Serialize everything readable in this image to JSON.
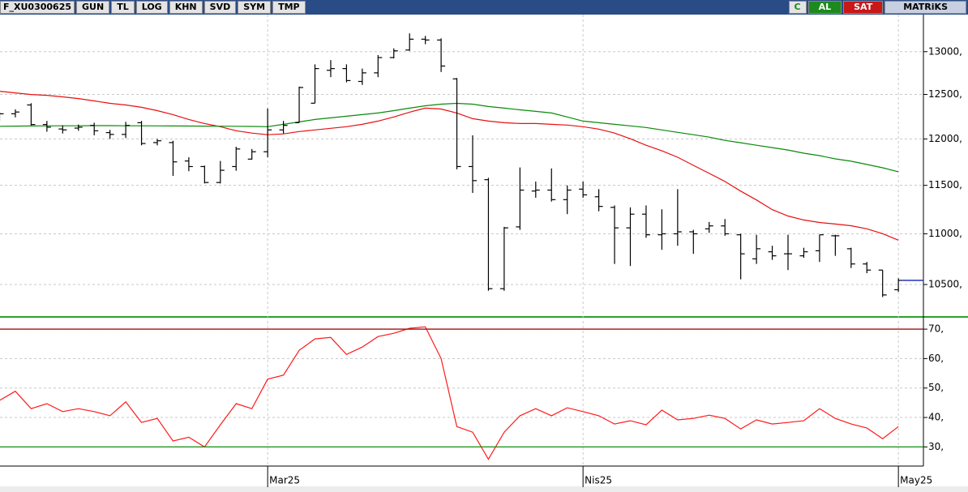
{
  "toolbar": {
    "symbol": "F_XU0300625",
    "buttons": [
      "GUN",
      "TL",
      "LOG",
      "KHN",
      "SVD",
      "SYM",
      "TMP"
    ],
    "right": [
      "C",
      "AL",
      "SAT",
      "MATRiKS"
    ]
  },
  "chart_data": [
    {
      "type": "ohlc",
      "color": "#000000",
      "log": true,
      "grid": true,
      "ylim": [
        10200,
        13450
      ],
      "yticks": [
        {
          "value": 10500,
          "label": "10500,"
        },
        {
          "value": 11000,
          "label": "11000,"
        },
        {
          "value": 11500,
          "label": "11500,"
        },
        {
          "value": 12000,
          "label": "12000,"
        },
        {
          "value": 12500,
          "label": "12500,"
        },
        {
          "value": 13000,
          "label": "13000,"
        }
      ],
      "open": [
        12250,
        12280,
        12380,
        12160,
        12110,
        12120,
        12150,
        12070,
        12050,
        12180,
        11960,
        11960,
        11760,
        11700,
        11530,
        11700,
        11780,
        11860,
        12100,
        12180,
        12400,
        12780,
        12800,
        12650,
        12750,
        12930,
        13020,
        13150,
        13140,
        12680,
        11700,
        11560,
        10460,
        11070,
        11440,
        11450,
        11350,
        11460,
        11380,
        11270,
        11060,
        11200,
        10990,
        11000,
        11020,
        11050,
        11080,
        10990,
        10750,
        10820,
        10800,
        10780,
        10830,
        10980,
        10850,
        10700,
        10640,
        10450
      ],
      "high": [
        12300,
        12330,
        12400,
        12200,
        12150,
        12160,
        12180,
        12100,
        12190,
        12200,
        12000,
        11980,
        11800,
        11710,
        11760,
        11915,
        11890,
        12340,
        12200,
        12590,
        12850,
        12900,
        12850,
        12800,
        12960,
        13040,
        13220,
        13190,
        13160,
        12690,
        12040,
        11580,
        11070,
        11690,
        11540,
        11680,
        11500,
        11540,
        11460,
        11290,
        11270,
        11290,
        11250,
        11460,
        11040,
        11120,
        11150,
        11000,
        10990,
        10880,
        10990,
        10860,
        10990,
        10990,
        10860,
        10720,
        10640,
        10560
      ],
      "low": [
        12200,
        12240,
        12150,
        12080,
        12060,
        12090,
        12040,
        12000,
        12010,
        11930,
        11930,
        11600,
        11650,
        11520,
        11520,
        11655,
        11775,
        11800,
        12060,
        12180,
        12400,
        12700,
        12640,
        12610,
        12700,
        12920,
        13010,
        13090,
        12760,
        11670,
        11420,
        10440,
        10440,
        11040,
        11370,
        11330,
        11200,
        11370,
        11230,
        10700,
        10680,
        10960,
        10840,
        10880,
        10800,
        11010,
        10980,
        10550,
        10700,
        10740,
        10640,
        10760,
        10720,
        10780,
        10660,
        10610,
        10380,
        10430
      ],
      "close": [
        12280,
        12300,
        12160,
        12130,
        12100,
        12130,
        12090,
        12050,
        12150,
        11950,
        11980,
        11750,
        11700,
        11530,
        11660,
        11890,
        11860,
        12100,
        12150,
        12580,
        12800,
        12800,
        12660,
        12750,
        12930,
        13010,
        13150,
        13140,
        12830,
        11700,
        11550,
        10460,
        11060,
        11450,
        11450,
        11350,
        11450,
        11400,
        11280,
        11060,
        11200,
        10990,
        11000,
        11020,
        11000,
        11080,
        11000,
        10800,
        10850,
        10780,
        10800,
        10820,
        10990,
        10980,
        10700,
        10640,
        10400,
        10540
      ],
      "last_price_color": "#2030c0",
      "overlays": [
        {
          "color": "#e81010",
          "values": [
            12536,
            12518,
            12499,
            12490,
            12472,
            12453,
            12426,
            12398,
            12380,
            12353,
            12316,
            12271,
            12216,
            12171,
            12136,
            12091,
            12065,
            12047,
            12056,
            12082,
            12100,
            12118,
            12136,
            12162,
            12198,
            12244,
            12298,
            12344,
            12334,
            12289,
            12225,
            12198,
            12180,
            12171,
            12171,
            12162,
            12154,
            12136,
            12109,
            12065,
            12002,
            11931,
            11870,
            11800,
            11713,
            11627,
            11541,
            11439,
            11347,
            11247,
            11181,
            11140,
            11115,
            11099,
            11082,
            11050,
            11001,
            10936
          ]
        },
        {
          "color": "#0a8a0a",
          "values": [
            12140,
            12142,
            12144,
            12145,
            12146,
            12146,
            12147,
            12147,
            12146,
            12146,
            12145,
            12144,
            12143,
            12142,
            12141,
            12140,
            12138,
            12136,
            12162,
            12189,
            12216,
            12234,
            12253,
            12271,
            12289,
            12316,
            12344,
            12371,
            12389,
            12398,
            12389,
            12362,
            12344,
            12325,
            12307,
            12289,
            12244,
            12198,
            12180,
            12162,
            12145,
            12127,
            12100,
            12073,
            12047,
            12020,
            11984,
            11958,
            11931,
            11905,
            11879,
            11844,
            11818,
            11783,
            11757,
            11722,
            11687,
            11644
          ]
        }
      ]
    },
    {
      "type": "line",
      "color": "#ff1a1a",
      "grid": true,
      "ylim": [
        23.5,
        72.5
      ],
      "yticks": [
        {
          "value": 30,
          "label": "30,"
        },
        {
          "value": 40,
          "label": "40,"
        },
        {
          "value": 50,
          "label": "50,"
        },
        {
          "value": 60,
          "label": "60,"
        },
        {
          "value": 70,
          "label": "70,"
        }
      ],
      "bands": [
        {
          "value": 70,
          "color": "#a01010"
        },
        {
          "value": 30,
          "color": "#109010"
        }
      ],
      "categories": [
        null,
        null,
        null,
        null,
        null,
        null,
        null,
        null,
        null,
        null,
        null,
        null,
        null,
        null,
        null,
        null,
        null,
        "Mar25",
        null,
        null,
        null,
        null,
        null,
        null,
        null,
        null,
        null,
        null,
        null,
        null,
        null,
        null,
        null,
        null,
        null,
        null,
        null,
        "Nis25",
        null,
        null,
        null,
        null,
        null,
        null,
        null,
        null,
        null,
        null,
        null,
        null,
        null,
        null,
        null,
        null,
        null,
        null,
        null,
        "May25"
      ],
      "values": [
        45.8,
        48.9,
        43,
        44.7,
        42,
        43,
        42,
        40.6,
        45.3,
        38.3,
        39.7,
        32,
        33.3,
        30,
        37.5,
        44.7,
        43,
        53,
        54.4,
        62.8,
        66.7,
        67.2,
        61.4,
        63.9,
        67.5,
        68.6,
        70.3,
        70.8,
        60,
        36.9,
        35,
        25.8,
        35,
        40.6,
        43,
        40.6,
        43.3,
        42,
        40.6,
        37.8,
        38.9,
        37.5,
        42.5,
        39.2,
        39.7,
        40.8,
        39.7,
        36.1,
        39.2,
        37.8,
        38.3,
        38.9,
        43,
        39.7,
        37.8,
        36.4,
        32.8,
        36.9
      ]
    }
  ]
}
